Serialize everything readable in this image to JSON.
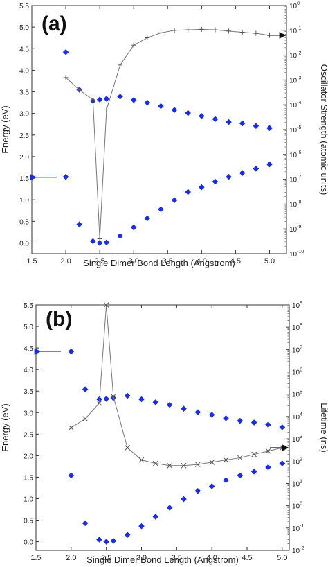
{
  "colors": {
    "energy": "#1a2ee0",
    "secondary": "#777777",
    "axis": "#333333"
  },
  "chart_data": [
    {
      "type": "scatter",
      "panel_label": "(a)",
      "xlabel": "Single Dimer Bond Length (Angstrom)",
      "ylabel": "Energy (eV)",
      "y2label": "Oscillator Strength (atomic units)",
      "xlim": [
        1.5,
        5.25
      ],
      "ylim": [
        -0.25,
        5.5
      ],
      "y2lim_log10": [
        -10,
        0
      ],
      "y2scale": "log",
      "xticks": [
        "1.5",
        "2.0",
        "2.5",
        "3.0",
        "3.5",
        "4.0",
        "4.5",
        "5.0"
      ],
      "yticks": [
        "0.0",
        "0.5",
        "1.0",
        "1.5",
        "2.0",
        "2.5",
        "3.0",
        "3.5",
        "4.0",
        "4.5",
        "5.0",
        "5.5"
      ],
      "y2ticks_exponents": [
        "-10",
        "-9",
        "-8",
        "-7",
        "-6",
        "-5",
        "-4",
        "-3",
        "-2",
        "-1",
        "0"
      ],
      "y2ticks_base": "10",
      "series": [
        {
          "axis": "left",
          "marker": "diamond",
          "x": [
            2.0,
            2.2,
            2.4,
            2.5,
            2.6,
            2.8,
            3.0,
            3.2,
            3.4,
            3.6,
            3.8,
            4.0,
            4.2,
            4.4,
            4.6,
            4.8,
            5.0
          ],
          "y": [
            4.42,
            3.55,
            3.29,
            3.32,
            3.34,
            3.39,
            3.31,
            3.25,
            3.17,
            3.08,
            3.01,
            2.94,
            2.87,
            2.8,
            2.77,
            2.71,
            2.66
          ]
        },
        {
          "axis": "left",
          "marker": "diamond",
          "x": [
            2.0,
            2.2,
            2.4,
            2.5,
            2.6,
            2.8,
            3.0,
            3.2,
            3.4,
            3.6,
            3.8,
            4.0,
            4.2,
            4.4,
            4.6,
            4.8,
            5.0
          ],
          "y": [
            1.53,
            0.43,
            0.04,
            0.0,
            0.01,
            0.16,
            0.36,
            0.57,
            0.78,
            0.99,
            1.18,
            1.29,
            1.42,
            1.53,
            1.62,
            1.72,
            1.82
          ]
        },
        {
          "axis": "right",
          "marker": "plus",
          "line": true,
          "x": [
            2.0,
            2.2,
            2.4,
            2.5,
            2.6,
            2.8,
            3.0,
            3.2,
            3.4,
            3.6,
            3.8,
            4.0,
            4.2,
            4.4,
            4.6,
            4.8,
            5.0
          ],
          "y_log10": [
            -2.9,
            -3.4,
            -3.8,
            -9.4,
            -4.2,
            -2.4,
            -1.6,
            -1.3,
            -1.1,
            -1.0,
            -0.98,
            -0.96,
            -0.98,
            -1.03,
            -1.08,
            -1.12,
            -1.2
          ]
        }
      ],
      "arrows": [
        {
          "direction": "left",
          "axis": "left",
          "y": 1.52
        },
        {
          "direction": "right",
          "axis": "right",
          "y_log10": -1.2
        }
      ]
    },
    {
      "type": "scatter",
      "panel_label": "(b)",
      "xlabel": "Single Dimer Bond Length (Angstrom)",
      "ylabel": "Energy (eV)",
      "y2label": "Lifetime (ns)",
      "xlim": [
        1.5,
        5.1
      ],
      "ylim": [
        -0.2,
        5.5
      ],
      "y2lim_log10": [
        -2,
        9
      ],
      "y2scale": "log",
      "xticks": [
        "1.5",
        "2.0",
        "2.5",
        "3.0",
        "3.5",
        "4.0",
        "4.5",
        "5.0"
      ],
      "yticks": [
        "0.0",
        "0.5",
        "1.0",
        "1.5",
        "2.0",
        "2.5",
        "3.0",
        "3.5",
        "4.0",
        "4.5",
        "5.0",
        "5.5"
      ],
      "y2ticks_exponents": [
        "-2",
        "-1",
        "0",
        "1",
        "2",
        "3",
        "4",
        "5",
        "6",
        "7",
        "8",
        "9"
      ],
      "y2ticks_base": "10",
      "series": [
        {
          "axis": "left",
          "marker": "diamond",
          "x": [
            2.0,
            2.2,
            2.4,
            2.5,
            2.6,
            2.8,
            3.0,
            3.2,
            3.4,
            3.6,
            3.8,
            4.0,
            4.2,
            4.4,
            4.6,
            4.8,
            5.0
          ],
          "y": [
            4.42,
            3.54,
            3.31,
            3.32,
            3.34,
            3.39,
            3.31,
            3.24,
            3.18,
            3.09,
            3.01,
            2.95,
            2.87,
            2.81,
            2.77,
            2.72,
            2.66
          ]
        },
        {
          "axis": "left",
          "marker": "diamond",
          "x": [
            2.0,
            2.2,
            2.4,
            2.5,
            2.6,
            2.8,
            3.0,
            3.2,
            3.4,
            3.6,
            3.8,
            4.0,
            4.2,
            4.4,
            4.6,
            4.8,
            5.0
          ],
          "y": [
            1.54,
            0.43,
            0.05,
            0.0,
            0.02,
            0.16,
            0.36,
            0.58,
            0.79,
            0.99,
            1.18,
            1.29,
            1.43,
            1.54,
            1.63,
            1.73,
            1.82
          ]
        },
        {
          "axis": "right",
          "marker": "x",
          "line": true,
          "x": [
            2.0,
            2.2,
            2.4,
            2.5,
            2.6,
            2.8,
            3.0,
            3.2,
            3.4,
            3.6,
            3.8,
            4.0,
            4.2,
            4.4,
            4.6,
            4.8,
            5.0
          ],
          "y_log10": [
            3.5,
            3.9,
            4.6,
            9.0,
            4.9,
            2.6,
            2.05,
            1.9,
            1.8,
            1.8,
            1.85,
            1.95,
            2.05,
            2.15,
            2.3,
            2.45,
            2.6
          ]
        }
      ],
      "arrows": [
        {
          "direction": "left",
          "axis": "left",
          "y": 4.42
        },
        {
          "direction": "right",
          "axis": "right",
          "y_log10": 2.6
        }
      ]
    }
  ]
}
